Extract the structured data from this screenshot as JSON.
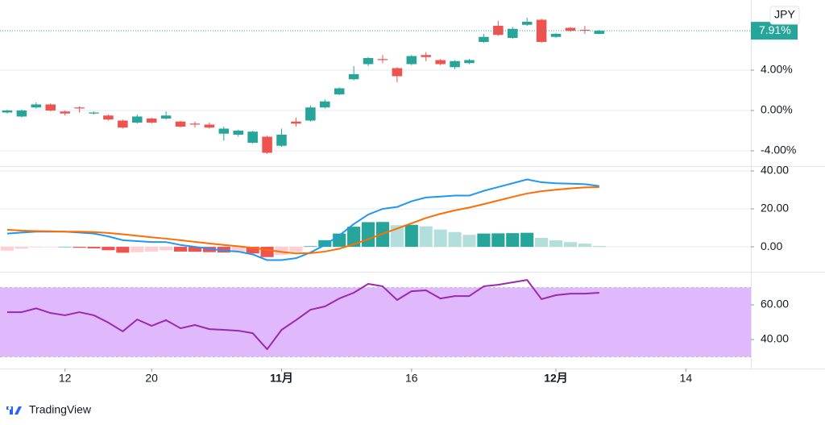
{
  "brand": "TradingView",
  "chart_data": [
    {
      "type": "candlestick",
      "currency": "JPY",
      "price_label": "7.91%",
      "x": [
        0,
        1,
        2,
        3,
        4,
        5,
        6,
        7,
        8,
        9,
        10,
        11,
        12,
        13,
        14,
        15,
        16,
        17,
        18,
        19,
        20,
        21,
        22,
        23,
        24,
        25,
        26,
        27,
        28,
        29,
        30,
        31,
        32,
        33,
        34,
        35,
        36,
        37,
        38,
        39,
        40,
        41
      ],
      "open": [
        -0.2,
        -0.6,
        0.3,
        0.6,
        -0.1,
        0.3,
        -0.3,
        -0.5,
        -1.0,
        -1.2,
        -0.8,
        -0.8,
        -1.1,
        -1.3,
        -1.4,
        -2.3,
        -2.4,
        -3.2,
        -2.6,
        -3.5,
        -1.1,
        -1.0,
        0.3,
        1.6,
        3.1,
        4.6,
        5.1,
        4.2,
        4.6,
        5.5,
        5.0,
        4.3,
        4.7,
        6.8,
        8.4,
        7.2,
        8.5,
        9.0,
        7.3,
        8.2,
        8.0,
        7.6
      ],
      "high": [
        0.1,
        0.1,
        0.8,
        0.7,
        0,
        0.4,
        -0.1,
        -0.4,
        -0.9,
        -0.4,
        -0.7,
        -0.1,
        -1.0,
        -1.1,
        -1.2,
        -1.6,
        -1.9,
        -2.0,
        -2.5,
        -1.8,
        -0.7,
        0.5,
        1.1,
        2.3,
        4.4,
        5.3,
        5.5,
        4.3,
        5.5,
        5.8,
        5.1,
        5.0,
        5.1,
        7.6,
        8.9,
        8.3,
        9.2,
        9.1,
        7.7,
        8.3,
        8.4,
        8.0
      ],
      "low": [
        -0.3,
        -0.7,
        0.2,
        -0.1,
        -0.5,
        -0.2,
        -0.4,
        -1.0,
        -1.8,
        -1.3,
        -1.3,
        -0.9,
        -1.7,
        -1.7,
        -1.8,
        -3.0,
        -2.6,
        -3.3,
        -4.3,
        -3.6,
        -1.6,
        -1.1,
        0.2,
        1.5,
        3.0,
        4.4,
        4.7,
        2.8,
        4.5,
        4.9,
        4.5,
        4.1,
        4.6,
        6.7,
        7.4,
        7.1,
        8.4,
        6.7,
        7.2,
        7.8,
        7.6,
        7.55
      ],
      "close": [
        0,
        0,
        0.6,
        0,
        -0.3,
        0.2,
        -0.2,
        -0.9,
        -1.7,
        -0.6,
        -1.2,
        -0.5,
        -1.6,
        -1.4,
        -1.7,
        -1.8,
        -2.0,
        -2.1,
        -4.2,
        -2.4,
        -1.3,
        0.3,
        0.9,
        2.2,
        3.6,
        5.2,
        5.0,
        3.4,
        5.4,
        5.3,
        4.6,
        4.9,
        5.0,
        7.3,
        7.5,
        8.1,
        8.8,
        6.8,
        7.6,
        7.9,
        7.95,
        7.91
      ],
      "up_color": "#26a69a",
      "down_color": "#ef5350",
      "xlim": [
        -0.5,
        51.5
      ],
      "ylim": [
        -5.44,
        10.96
      ],
      "yticks": [
        {
          "value": 4,
          "label": "4.00%"
        },
        {
          "value": 0,
          "label": "0.00%"
        },
        {
          "value": -4,
          "label": "-4.00%"
        }
      ],
      "grid": true
    },
    {
      "type": "macd",
      "x": [
        0,
        1,
        2,
        3,
        4,
        5,
        6,
        7,
        8,
        9,
        10,
        11,
        12,
        13,
        14,
        15,
        16,
        17,
        18,
        19,
        20,
        21,
        22,
        23,
        24,
        25,
        26,
        27,
        28,
        29,
        30,
        31,
        32,
        33,
        34,
        35,
        36,
        37,
        38,
        39,
        40,
        41
      ],
      "histogram": [
        -2,
        -1,
        -0.3,
        -0.2,
        0,
        -0.5,
        -0.8,
        -1.8,
        -3.1,
        -2.8,
        -2.5,
        -1.8,
        -2.5,
        -2.6,
        -2.8,
        -3,
        -2.8,
        -3.5,
        -5.4,
        -4.3,
        -2.5,
        0.3,
        3.5,
        7,
        10.6,
        13,
        13.1,
        11.4,
        11.6,
        10.8,
        9.1,
        7.8,
        6.3,
        7,
        7.1,
        7.2,
        7.4,
        4.7,
        3.4,
        2.5,
        1.7,
        0.5
      ],
      "histogram_colors": [
        "#26a69a",
        "#b2dfdb",
        "#ffcdd2",
        "#ef5350"
      ],
      "series": [
        {
          "color": "#2196f3",
          "values": [
            7,
            7.5,
            8,
            8,
            8,
            7.5,
            7,
            5.5,
            3.5,
            3,
            2.5,
            2.5,
            1,
            0,
            -1,
            -2,
            -2.5,
            -4,
            -7,
            -7,
            -6,
            -3,
            1,
            6,
            12,
            17,
            20,
            21,
            24,
            26,
            26.5,
            27,
            27,
            29.5,
            31.5,
            33.5,
            35.5,
            34,
            33.5,
            33.3,
            33,
            32
          ]
        },
        {
          "color": "#ff6d00",
          "values": [
            9,
            8.5,
            8.3,
            8.2,
            8,
            8,
            7.8,
            7.3,
            6.6,
            5.8,
            5,
            4.3,
            3.5,
            2.6,
            1.8,
            1,
            0.3,
            -0.5,
            -1.6,
            -2.7,
            -3.5,
            -3.3,
            -2.5,
            -1,
            1.4,
            4,
            6.9,
            9.6,
            12.4,
            15.2,
            17.4,
            19.2,
            20.7,
            22.5,
            24.4,
            26.3,
            28.1,
            29.3,
            30.1,
            30.8,
            31.3,
            31.5
          ]
        }
      ],
      "xlim": [
        -0.5,
        51.5
      ],
      "ylim": [
        -12.3,
        42.1
      ],
      "yticks": [
        {
          "value": 40,
          "label": "40.00"
        },
        {
          "value": 20,
          "label": "20.00"
        },
        {
          "value": 0,
          "label": "0.00"
        }
      ],
      "grid": true
    },
    {
      "type": "line",
      "x": [
        0,
        1,
        2,
        3,
        4,
        5,
        6,
        7,
        8,
        9,
        10,
        11,
        12,
        13,
        14,
        15,
        16,
        17,
        18,
        19,
        20,
        21,
        22,
        23,
        24,
        25,
        26,
        27,
        28,
        29,
        30,
        31,
        32,
        33,
        34,
        35,
        36,
        37,
        38,
        39,
        40,
        41
      ],
      "series": [
        {
          "color": "#9c27b0",
          "values": [
            55.8,
            55.8,
            58,
            55.3,
            54,
            55.8,
            54,
            49.8,
            44.7,
            51.6,
            47.9,
            51.2,
            46.5,
            48.4,
            46,
            45.6,
            45.1,
            43.7,
            34.4,
            45.6,
            51.2,
            57.2,
            59.1,
            63.7,
            67,
            72.1,
            70.7,
            62.8,
            67.9,
            68.4,
            63.7,
            65.1,
            65.1,
            70.7,
            71.6,
            73,
            74.4,
            63.3,
            65.6,
            66.5,
            66.5,
            67
          ]
        }
      ],
      "band": [
        30,
        70
      ],
      "band_color": "#dfb9fb",
      "xlim": [
        -0.5,
        51.5
      ],
      "ylim": [
        24.2,
        77.7
      ],
      "yticks": [
        {
          "value": 60,
          "label": "60.00"
        },
        {
          "value": 40,
          "label": "40.00"
        }
      ],
      "grid": false,
      "xticks": [
        {
          "value": 4,
          "label": "12"
        },
        {
          "value": 10,
          "label": "20"
        },
        {
          "value": 19,
          "label": "11月"
        },
        {
          "value": 28,
          "label": "16"
        },
        {
          "value": 38,
          "label": "12月"
        },
        {
          "value": 47,
          "label": "14"
        }
      ],
      "xticks_bold": [
        false,
        false,
        true,
        false,
        true,
        false
      ]
    }
  ]
}
